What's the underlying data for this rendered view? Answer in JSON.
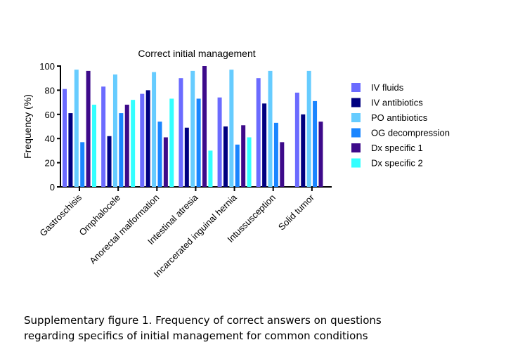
{
  "chart_data": {
    "type": "bar",
    "title": "Correct initial management",
    "ylabel": "Frequency (%)",
    "xlabel": "",
    "ylim": [
      0,
      100
    ],
    "yticks": [
      "0",
      "20",
      "40",
      "60",
      "80",
      "100"
    ],
    "categories": [
      "Gastroschisis",
      "Omphalocele",
      "Anorectal malformation",
      "Intestinal atresia",
      "Incarcerated inguinal hernia",
      "Intussusception",
      "Solid tumor"
    ],
    "legend_position": "right",
    "series": [
      {
        "name": "IV fluids",
        "color": "#6b6bff",
        "values": [
          81,
          83,
          77,
          90,
          74,
          90,
          78
        ]
      },
      {
        "name": "IV antibiotics",
        "color": "#000080",
        "values": [
          61,
          42,
          80,
          49,
          50,
          69,
          60
        ]
      },
      {
        "name": "PO antibiotics",
        "color": "#66ccff",
        "values": [
          97,
          93,
          95,
          96,
          97,
          96,
          96
        ]
      },
      {
        "name": "OG decompression",
        "color": "#1a85ff",
        "values": [
          37,
          61,
          54,
          73,
          35,
          53,
          71
        ]
      },
      {
        "name": "Dx specific 1",
        "color": "#3d0a8a",
        "values": [
          96,
          68,
          41,
          100,
          51,
          37,
          54
        ]
      },
      {
        "name": "Dx specific 2",
        "color": "#33ffff",
        "values": [
          68,
          72,
          73,
          30,
          41,
          null,
          null
        ]
      }
    ]
  },
  "caption": {
    "line1": "Supplementary figure 1. Frequency of correct answers on questions",
    "line2": "regarding specifics of initial management for common conditions"
  }
}
